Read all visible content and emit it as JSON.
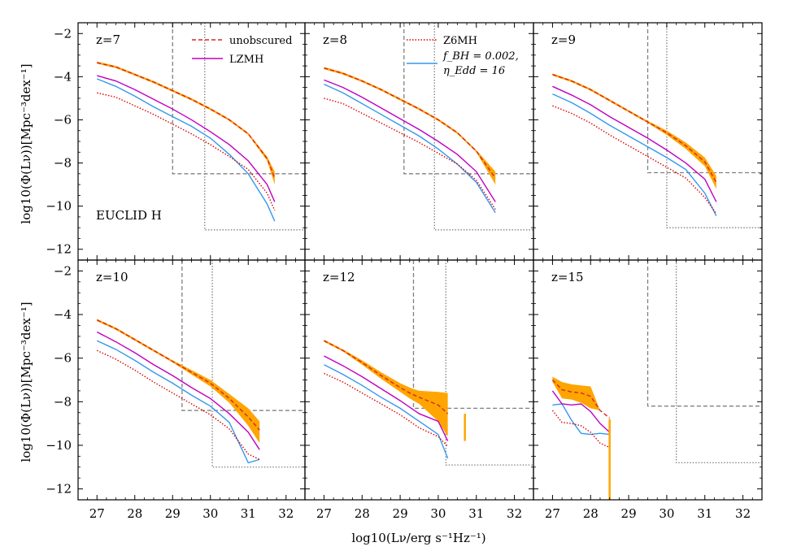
{
  "figure": {
    "xlabel": "log10(Lν/erg s⁻¹Hz⁻¹)",
    "ylabel": "log10(Φ(Lν))[Mpc⁻³dex⁻¹]",
    "survey_label": "EUCLID H"
  },
  "legend": {
    "unobscured": "unobscured",
    "lzmh": "LZMH",
    "z6mh": "Z6MH",
    "fbh_line1": "f_BH = 0.002,",
    "fbh_line2": "η_Edd = 16"
  },
  "colors": {
    "unobscured": "#d62728",
    "band": "#ffa500",
    "lzmh": "#c000c0",
    "z6mh": "#dd0000",
    "fbh": "#3399ee",
    "limit": "#808080"
  },
  "chart_data": [
    {
      "type": "line",
      "panel_label": "z=7",
      "xlim": [
        26.5,
        32.5
      ],
      "ylim": [
        -12.5,
        -1.5
      ],
      "xticks": [
        27,
        28,
        29,
        30,
        31,
        32
      ],
      "yticks": [
        -2,
        -4,
        -6,
        -8,
        -10,
        -12
      ],
      "x": [
        27,
        27.5,
        28,
        28.5,
        29,
        29.5,
        30,
        30.5,
        31,
        31.5,
        31.7
      ],
      "series": [
        {
          "name": "unobscured",
          "values": [
            -3.35,
            -3.55,
            -3.9,
            -4.25,
            -4.65,
            -5.05,
            -5.5,
            -6.0,
            -6.65,
            -7.8,
            -8.7
          ],
          "lower": [
            -3.4,
            -3.6,
            -3.95,
            -4.3,
            -4.7,
            -5.1,
            -5.55,
            -6.05,
            -6.7,
            -7.9,
            -9.0
          ],
          "upper": [
            -3.3,
            -3.5,
            -3.85,
            -4.2,
            -4.6,
            -5.0,
            -5.45,
            -5.95,
            -6.6,
            -7.7,
            -8.4
          ]
        },
        {
          "name": "LZMH",
          "values": [
            -3.95,
            -4.2,
            -4.6,
            -5.05,
            -5.5,
            -6.0,
            -6.55,
            -7.15,
            -7.9,
            -9.0,
            -9.8
          ]
        },
        {
          "name": "Z6MH",
          "values": [
            -4.75,
            -4.95,
            -5.35,
            -5.75,
            -6.2,
            -6.65,
            -7.15,
            -7.7,
            -8.3,
            -9.4,
            -10.2
          ]
        },
        {
          "name": "fBH",
          "values": [
            -4.1,
            -4.45,
            -4.9,
            -5.4,
            -5.85,
            -6.3,
            -6.85,
            -7.6,
            -8.5,
            -9.9,
            -10.7
          ]
        }
      ],
      "limits": [
        {
          "style": "dashed",
          "x": 29.0,
          "y": -8.5,
          "xend": 32.5
        },
        {
          "style": "dotted",
          "x": 29.85,
          "y": -11.1,
          "xend": 32.5
        }
      ]
    },
    {
      "type": "line",
      "panel_label": "z=8",
      "xlim": [
        26.5,
        32.5
      ],
      "ylim": [
        -12.5,
        -1.5
      ],
      "xticks": [
        27,
        28,
        29,
        30,
        31,
        32
      ],
      "yticks": [
        -2,
        -4,
        -6,
        -8,
        -10,
        -12
      ],
      "x": [
        27,
        27.5,
        28,
        28.5,
        29,
        29.5,
        30,
        30.5,
        31,
        31.5
      ],
      "series": [
        {
          "name": "unobscured",
          "values": [
            -3.6,
            -3.85,
            -4.2,
            -4.6,
            -5.05,
            -5.5,
            -6.0,
            -6.6,
            -7.45,
            -8.7
          ],
          "lower": [
            -3.65,
            -3.9,
            -4.25,
            -4.65,
            -5.1,
            -5.55,
            -6.05,
            -6.65,
            -7.5,
            -9.0
          ],
          "upper": [
            -3.55,
            -3.8,
            -4.15,
            -4.55,
            -5.0,
            -5.45,
            -5.95,
            -6.55,
            -7.4,
            -8.4
          ]
        },
        {
          "name": "LZMH",
          "values": [
            -4.15,
            -4.5,
            -4.95,
            -5.45,
            -5.95,
            -6.45,
            -7.0,
            -7.6,
            -8.4,
            -9.8
          ]
        },
        {
          "name": "Z6MH",
          "values": [
            -5.0,
            -5.25,
            -5.7,
            -6.15,
            -6.6,
            -7.05,
            -7.55,
            -8.05,
            -8.8,
            -10.15
          ]
        },
        {
          "name": "fBH",
          "values": [
            -4.35,
            -4.75,
            -5.25,
            -5.75,
            -6.25,
            -6.75,
            -7.35,
            -8.05,
            -8.9,
            -10.3
          ]
        }
      ],
      "limits": [
        {
          "style": "dashed",
          "x": 29.1,
          "y": -8.5,
          "xend": 32.5
        },
        {
          "style": "dotted",
          "x": 29.9,
          "y": -11.1,
          "xend": 32.5
        }
      ]
    },
    {
      "type": "line",
      "panel_label": "z=9",
      "xlim": [
        26.5,
        32.5
      ],
      "ylim": [
        -12.5,
        -1.5
      ],
      "xticks": [
        27,
        28,
        29,
        30,
        31,
        32
      ],
      "yticks": [
        -2,
        -4,
        -6,
        -8,
        -10,
        -12
      ],
      "x": [
        27,
        27.5,
        28,
        28.5,
        29,
        29.5,
        30,
        30.5,
        31,
        31.3
      ],
      "series": [
        {
          "name": "unobscured",
          "values": [
            -3.9,
            -4.2,
            -4.6,
            -5.1,
            -5.6,
            -6.1,
            -6.6,
            -7.2,
            -7.95,
            -8.9
          ],
          "lower": [
            -3.95,
            -4.25,
            -4.65,
            -5.15,
            -5.65,
            -6.15,
            -6.7,
            -7.35,
            -8.15,
            -9.2
          ],
          "upper": [
            -3.85,
            -4.15,
            -4.55,
            -5.05,
            -5.55,
            -6.05,
            -6.5,
            -7.05,
            -7.75,
            -8.6
          ]
        },
        {
          "name": "LZMH",
          "values": [
            -4.45,
            -4.85,
            -5.3,
            -5.85,
            -6.35,
            -6.85,
            -7.4,
            -8.0,
            -8.75,
            -9.8
          ]
        },
        {
          "name": "Z6MH",
          "values": [
            -5.35,
            -5.7,
            -6.15,
            -6.7,
            -7.2,
            -7.7,
            -8.2,
            -8.7,
            -9.6,
            -10.35
          ]
        },
        {
          "name": "fBH",
          "values": [
            -4.8,
            -5.2,
            -5.7,
            -6.25,
            -6.75,
            -7.25,
            -7.75,
            -8.3,
            -9.4,
            -10.45
          ]
        }
      ],
      "limits": [
        {
          "style": "dashed",
          "x": 29.5,
          "y": -8.45,
          "xend": 32.5
        },
        {
          "style": "dotted",
          "x": 30.0,
          "y": -11.0,
          "xend": 32.5
        }
      ]
    },
    {
      "type": "line",
      "panel_label": "z=10",
      "xlim": [
        26.5,
        32.5
      ],
      "ylim": [
        -12.5,
        -1.5
      ],
      "xticks": [
        27,
        28,
        29,
        30,
        31,
        32
      ],
      "yticks": [
        -2,
        -4,
        -6,
        -8,
        -10,
        -12
      ],
      "x": [
        27,
        27.5,
        28,
        28.5,
        29,
        29.5,
        30,
        30.5,
        31,
        31.3
      ],
      "series": [
        {
          "name": "unobscured",
          "values": [
            -4.25,
            -4.65,
            -5.15,
            -5.65,
            -6.15,
            -6.65,
            -7.15,
            -7.85,
            -8.7,
            -9.3
          ],
          "lower": [
            -4.3,
            -4.7,
            -5.2,
            -5.7,
            -6.2,
            -6.75,
            -7.3,
            -8.05,
            -9.1,
            -9.9
          ],
          "upper": [
            -4.2,
            -4.6,
            -5.1,
            -5.6,
            -6.1,
            -6.55,
            -7.0,
            -7.65,
            -8.3,
            -8.9
          ]
        },
        {
          "name": "LZMH",
          "values": [
            -4.8,
            -5.25,
            -5.75,
            -6.3,
            -6.8,
            -7.35,
            -7.85,
            -8.55,
            -9.4,
            -10.2
          ]
        },
        {
          "name": "Z6MH",
          "values": [
            -5.65,
            -6.05,
            -6.55,
            -7.1,
            -7.6,
            -8.1,
            -8.6,
            -9.25,
            -10.4,
            -10.65
          ]
        },
        {
          "name": "fBH",
          "values": [
            -5.2,
            -5.6,
            -6.1,
            -6.65,
            -7.15,
            -7.7,
            -8.2,
            -8.95,
            -10.8,
            -10.65
          ]
        }
      ],
      "limits": [
        {
          "style": "dashed",
          "x": 29.25,
          "y": -8.4,
          "xend": 32.5
        },
        {
          "style": "dotted",
          "x": 30.05,
          "y": -11.0,
          "xend": 32.5
        }
      ]
    },
    {
      "type": "line",
      "panel_label": "z=12",
      "xlim": [
        26.5,
        32.5
      ],
      "ylim": [
        -12.5,
        -1.5
      ],
      "xticks": [
        27,
        28,
        29,
        30,
        31,
        32
      ],
      "yticks": [
        -2,
        -4,
        -6,
        -8,
        -10,
        -12
      ],
      "x": [
        27,
        27.5,
        28,
        28.5,
        29,
        29.25,
        29.5,
        30,
        30.25
      ],
      "series": [
        {
          "name": "unobscured",
          "values": [
            -5.2,
            -5.65,
            -6.2,
            -6.8,
            -7.35,
            -7.6,
            -7.8,
            -8.15,
            -8.55
          ],
          "lower": [
            -5.25,
            -5.7,
            -6.3,
            -6.95,
            -7.55,
            -7.85,
            -8.1,
            -8.9,
            -9.6
          ],
          "upper": [
            -5.15,
            -5.6,
            -6.1,
            -6.65,
            -7.15,
            -7.35,
            -7.5,
            -7.55,
            -7.6
          ]
        },
        {
          "name": "LZMH",
          "values": [
            -5.9,
            -6.35,
            -6.85,
            -7.4,
            -7.95,
            -8.25,
            -8.55,
            -8.9,
            -9.8
          ]
        },
        {
          "name": "Z6MH",
          "values": [
            -6.7,
            -7.1,
            -7.6,
            -8.1,
            -8.6,
            -8.9,
            -9.2,
            -9.6,
            -10.05
          ]
        },
        {
          "name": "fBH",
          "values": [
            -6.3,
            -6.75,
            -7.25,
            -7.8,
            -8.3,
            -8.6,
            -8.9,
            -9.5,
            -10.6
          ]
        }
      ],
      "limits": [
        {
          "style": "dashed",
          "x": 29.35,
          "y": -8.3,
          "xend": 32.5
        },
        {
          "style": "dotted",
          "x": 30.2,
          "y": -10.9,
          "xend": 32.5
        }
      ],
      "error_bars": [
        {
          "x": 30.7,
          "y1": -8.55,
          "y2": -9.8
        }
      ]
    },
    {
      "type": "line",
      "panel_label": "z=15",
      "xlim": [
        26.5,
        32.5
      ],
      "ylim": [
        -12.5,
        -1.5
      ],
      "xticks": [
        27,
        28,
        29,
        30,
        31,
        32
      ],
      "yticks": [
        -2,
        -4,
        -6,
        -8,
        -10,
        -12
      ],
      "x": [
        27,
        27.25,
        27.5,
        27.75,
        28,
        28.25,
        28.5
      ],
      "series": [
        {
          "name": "unobscured",
          "values": [
            -7.0,
            -7.45,
            -7.55,
            -7.6,
            -7.75,
            -8.4,
            -8.75
          ],
          "lower": [
            -7.1,
            -7.85,
            -7.9,
            -8.05,
            -8.3,
            -8.4,
            -8.75
          ],
          "upper": [
            -6.85,
            -7.1,
            -7.2,
            -7.25,
            -7.3,
            -8.4,
            -8.75
          ]
        },
        {
          "name": "LZMH",
          "values": [
            -7.5,
            -8.1,
            -8.15,
            -8.1,
            -8.45,
            -9.0,
            -9.4
          ]
        },
        {
          "name": "Z6MH",
          "values": [
            -8.4,
            -8.95,
            -9.0,
            -9.1,
            -9.4,
            -9.9,
            -10.1
          ]
        },
        {
          "name": "fBH",
          "values": [
            -8.15,
            -8.1,
            -8.85,
            -9.45,
            -9.5,
            -9.45,
            -9.5
          ]
        }
      ],
      "limits": [
        {
          "style": "dashed",
          "x": 29.5,
          "y": -8.2,
          "xend": 32.5
        },
        {
          "style": "dotted",
          "x": 30.25,
          "y": -10.8,
          "xend": 32.5
        }
      ],
      "error_bars": [
        {
          "x": 28.5,
          "y1": -8.8,
          "y2": -12.5
        }
      ]
    }
  ]
}
